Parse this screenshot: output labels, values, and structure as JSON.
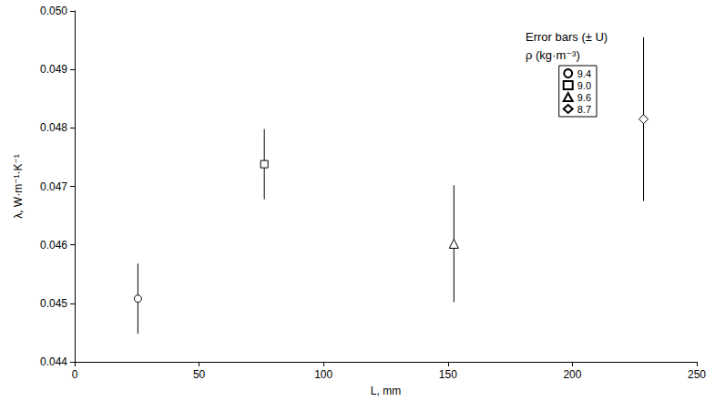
{
  "chart_data": {
    "type": "scatter",
    "x_label": "L, mm",
    "y_label": "λ, W·m⁻¹·K⁻¹",
    "legend_title": [
      "Error bars (± U)",
      "ρ (kg·m⁻³)"
    ],
    "legend": "upper right",
    "grid": false,
    "xlim": [
      0,
      250
    ],
    "xticks": [
      0,
      50,
      100,
      150,
      200,
      250
    ],
    "ylim": [
      0.044,
      0.05
    ],
    "yticks": [
      0.044,
      0.045,
      0.046,
      0.047,
      0.048,
      0.049,
      {
        "value": 0.05,
        "label": "0.050"
      }
    ],
    "series": [
      {
        "name": "9.4",
        "color": "#000000",
        "marker": "circle",
        "x": [
          25.4
        ],
        "values": [
          0.04508
        ],
        "error": [
          0.0006
        ]
      },
      {
        "name": "9.0",
        "color": "#000000",
        "marker": "square",
        "x": [
          76.2
        ],
        "values": [
          0.04738
        ],
        "error": [
          0.0006
        ]
      },
      {
        "name": "9.6",
        "color": "#000000",
        "marker": "triangle",
        "x": [
          152.4
        ],
        "values": [
          0.04602
        ],
        "error": [
          0.001
        ]
      },
      {
        "name": "8.7",
        "color": "#000000",
        "marker": "diamond",
        "x": [
          228.6
        ],
        "values": [
          0.04815
        ],
        "error": [
          0.0014
        ]
      }
    ]
  }
}
